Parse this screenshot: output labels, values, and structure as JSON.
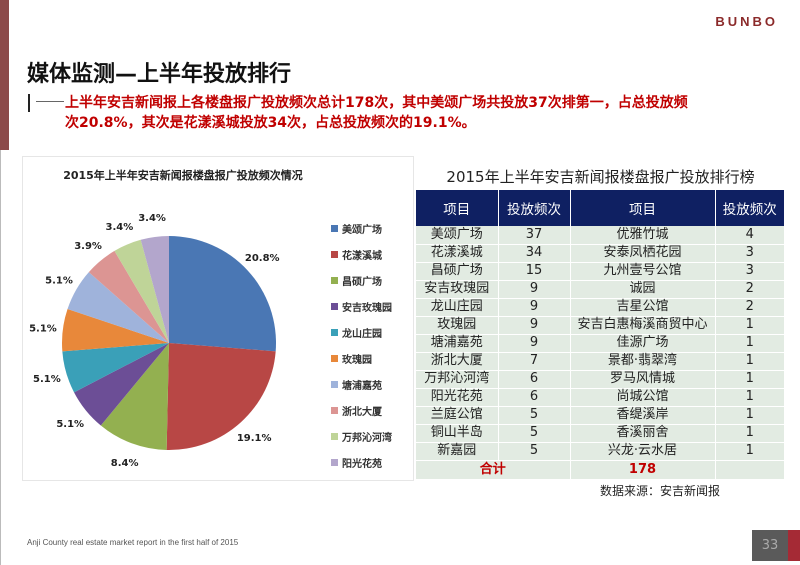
{
  "header": {
    "logo": "BUNBO",
    "title": "媒体监测—上半年投放排行",
    "summary_line1": "上半年安吉新闻报上各楼盘报广投放频次总计178次，其中美颂广场共投放37次排第一，占总投放频",
    "summary_line2": "次20.8%，其次是花漾溪城投放34次，占总投放频次的19.1%。"
  },
  "chart_data": {
    "type": "pie",
    "title": "2015年上半年安吉新闻报楼盘报广投放频次情况",
    "categories": [
      "美颂广场",
      "花漾溪城",
      "昌硕广场",
      "安吉玫瑰园",
      "龙山庄园",
      "玫瑰园",
      "塘浦嘉苑",
      "浙北大厦",
      "万邦沁河湾",
      "阳光花苑"
    ],
    "values": [
      37,
      34,
      15,
      9,
      9,
      9,
      9,
      7,
      6,
      6
    ],
    "labels": [
      "20.8%",
      "19.1%",
      "8.4%",
      "5.1%",
      "5.1%",
      "5.1%",
      "5.1%",
      "3.9%",
      "3.4%",
      "3.4%"
    ],
    "colors": [
      "#4a77b4",
      "#b84745",
      "#93b050",
      "#6c4e96",
      "#3aa0b8",
      "#e8883a",
      "#9fb3db",
      "#dc9593",
      "#bfd498",
      "#b3a6cc"
    ],
    "legend_position": "right"
  },
  "table": {
    "title": "2015年上半年安吉新闻报楼盘报广投放排行榜",
    "headers": [
      "项目",
      "投放频次",
      "项目",
      "投放频次"
    ],
    "rows": [
      [
        "美颂广场",
        "37",
        "优雅竹城",
        "4"
      ],
      [
        "花漾溪城",
        "34",
        "安泰凤栖花园",
        "3"
      ],
      [
        "昌硕广场",
        "15",
        "九州壹号公馆",
        "3"
      ],
      [
        "安吉玫瑰园",
        "9",
        "诚园",
        "2"
      ],
      [
        "龙山庄园",
        "9",
        "吉星公馆",
        "2"
      ],
      [
        "玫瑰园",
        "9",
        "安吉白惠梅溪商贸中心",
        "1"
      ],
      [
        "塘浦嘉苑",
        "9",
        "佳源广场",
        "1"
      ],
      [
        "浙北大厦",
        "7",
        "景都·翡翠湾",
        "1"
      ],
      [
        "万邦沁河湾",
        "6",
        "罗马风情城",
        "1"
      ],
      [
        "阳光花苑",
        "6",
        "尚城公馆",
        "1"
      ],
      [
        "兰庭公馆",
        "5",
        "香缇溪岸",
        "1"
      ],
      [
        "铜山半岛",
        "5",
        "香溪丽舍",
        "1"
      ],
      [
        "新嘉园",
        "5",
        "兴龙·云水居",
        "1"
      ]
    ],
    "total_label": "合计",
    "total_value": "178",
    "header_color": "#0f2062"
  },
  "source": "数据来源：安吉新闻报",
  "footer": {
    "text": "Anji County real estate market report in the first half of 2015",
    "page": "33"
  }
}
